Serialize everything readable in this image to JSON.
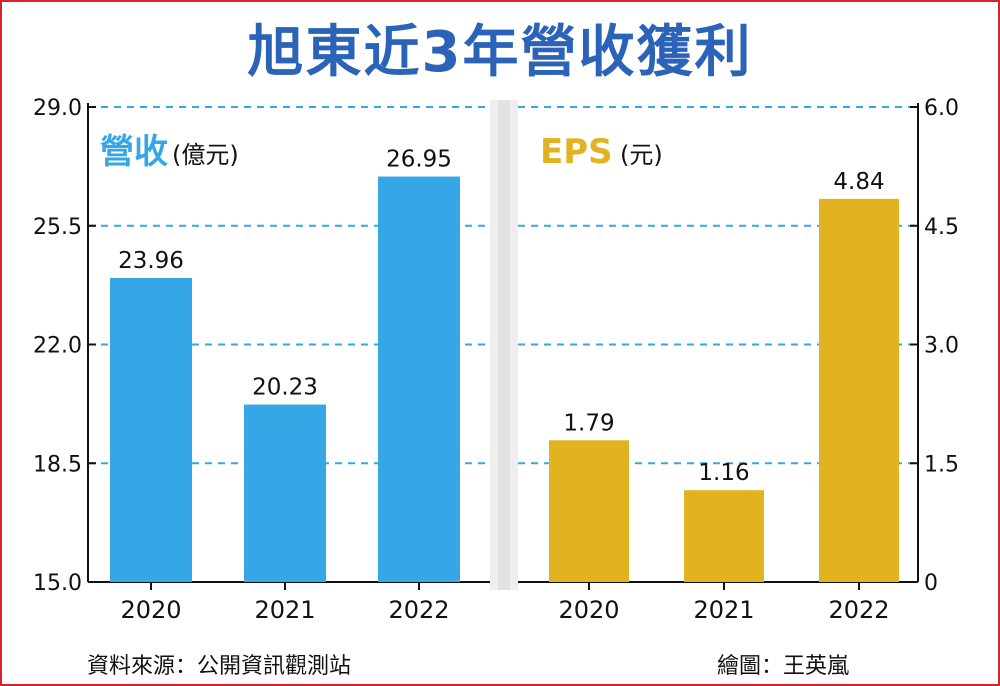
{
  "title": "旭東近3年營收獲利",
  "chart_data": [
    {
      "type": "bar",
      "legend_title": "營收",
      "legend_unit": "(億元)",
      "categories": [
        "2020",
        "2021",
        "2022"
      ],
      "values": [
        23.96,
        20.23,
        26.95
      ],
      "value_labels": [
        "23.96",
        "20.23",
        "26.95"
      ],
      "ylim": [
        15.0,
        29.0
      ],
      "yticks": [
        "15.0",
        "18.5",
        "22.0",
        "25.5",
        "29.0"
      ],
      "yaxis_side": "left",
      "color": "#35a7e6",
      "grid": true
    },
    {
      "type": "bar",
      "legend_title": "EPS",
      "legend_unit": "(元)",
      "categories": [
        "2020",
        "2021",
        "2022"
      ],
      "values": [
        1.79,
        1.16,
        4.84
      ],
      "value_labels": [
        "1.79",
        "1.16",
        "4.84"
      ],
      "ylim": [
        0,
        6.0
      ],
      "yticks": [
        "0",
        "1.5",
        "3.0",
        "4.5",
        "6.0"
      ],
      "yaxis_side": "right",
      "color": "#e2b321",
      "grid": true
    }
  ],
  "footer": {
    "source": "資料來源：公開資訊觀測站",
    "credit": "繪圖：王英嵐"
  }
}
